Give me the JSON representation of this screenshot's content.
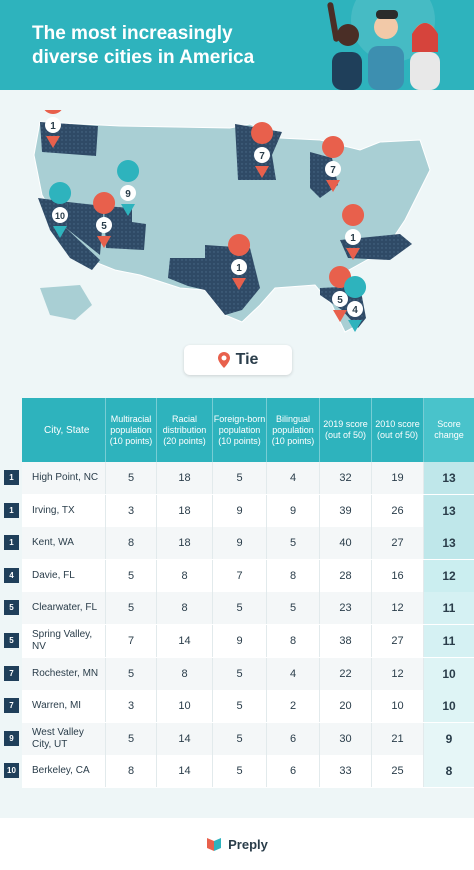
{
  "header": {
    "title_line1": "The most increasingly",
    "title_line2": "diverse cities in America"
  },
  "map": {
    "pins": [
      {
        "label": "1",
        "color": "#e8604c"
      },
      {
        "label": "7",
        "color": "#e8604c"
      },
      {
        "label": "7",
        "color": "#e8604c"
      },
      {
        "label": "9",
        "color": "#2eb3bd"
      },
      {
        "label": "10",
        "color": "#2eb3bd"
      },
      {
        "label": "5",
        "color": "#e8604c"
      },
      {
        "label": "1",
        "color": "#e8604c"
      },
      {
        "label": "1",
        "color": "#e8604c"
      },
      {
        "label": "5",
        "color": "#e8604c"
      },
      {
        "label": "4",
        "color": "#2eb3bd"
      }
    ]
  },
  "legend": {
    "tie_label": "Tie"
  },
  "table": {
    "headers": {
      "city": "City, State",
      "multiracial": "Multiracial population (10 points)",
      "racial": "Racial distribution (20 points)",
      "foreign": "Foreign-born population (10 points)",
      "bilingual": "Bilingual population (10 points)",
      "score2019": "2019 score (out of 50)",
      "score2010": "2010 score (out of 50)",
      "change": "Score change"
    },
    "rows": [
      {
        "rank": "1",
        "city": "High Point, NC",
        "multiracial": "5",
        "racial": "18",
        "foreign": "5",
        "bilingual": "4",
        "score2019": "32",
        "score2010": "19",
        "change": "13"
      },
      {
        "rank": "1",
        "city": "Irving, TX",
        "multiracial": "3",
        "racial": "18",
        "foreign": "9",
        "bilingual": "9",
        "score2019": "39",
        "score2010": "26",
        "change": "13"
      },
      {
        "rank": "1",
        "city": "Kent, WA",
        "multiracial": "8",
        "racial": "18",
        "foreign": "9",
        "bilingual": "5",
        "score2019": "40",
        "score2010": "27",
        "change": "13"
      },
      {
        "rank": "4",
        "city": "Davie, FL",
        "multiracial": "5",
        "racial": "8",
        "foreign": "7",
        "bilingual": "8",
        "score2019": "28",
        "score2010": "16",
        "change": "12"
      },
      {
        "rank": "5",
        "city": "Clearwater, FL",
        "multiracial": "5",
        "racial": "8",
        "foreign": "5",
        "bilingual": "5",
        "score2019": "23",
        "score2010": "12",
        "change": "11"
      },
      {
        "rank": "5",
        "city": "Spring Valley, NV",
        "multiracial": "7",
        "racial": "14",
        "foreign": "9",
        "bilingual": "8",
        "score2019": "38",
        "score2010": "27",
        "change": "11"
      },
      {
        "rank": "7",
        "city": "Rochester, MN",
        "multiracial": "5",
        "racial": "8",
        "foreign": "5",
        "bilingual": "4",
        "score2019": "22",
        "score2010": "12",
        "change": "10"
      },
      {
        "rank": "7",
        "city": "Warren, MI",
        "multiracial": "3",
        "racial": "10",
        "foreign": "5",
        "bilingual": "2",
        "score2019": "20",
        "score2010": "10",
        "change": "10"
      },
      {
        "rank": "9",
        "city": "West Valley City, UT",
        "multiracial": "5",
        "racial": "14",
        "foreign": "5",
        "bilingual": "6",
        "score2019": "30",
        "score2010": "21",
        "change": "9"
      },
      {
        "rank": "10",
        "city": "Berkeley, CA",
        "multiracial": "8",
        "racial": "14",
        "foreign": "5",
        "bilingual": "6",
        "score2019": "33",
        "score2010": "25",
        "change": "8"
      }
    ]
  },
  "footer": {
    "brand": "Preply"
  },
  "colors": {
    "teal": "#2eb3bd",
    "navy": "#1f3f5a",
    "coral": "#e8604c",
    "light": "#bcd9dc"
  }
}
